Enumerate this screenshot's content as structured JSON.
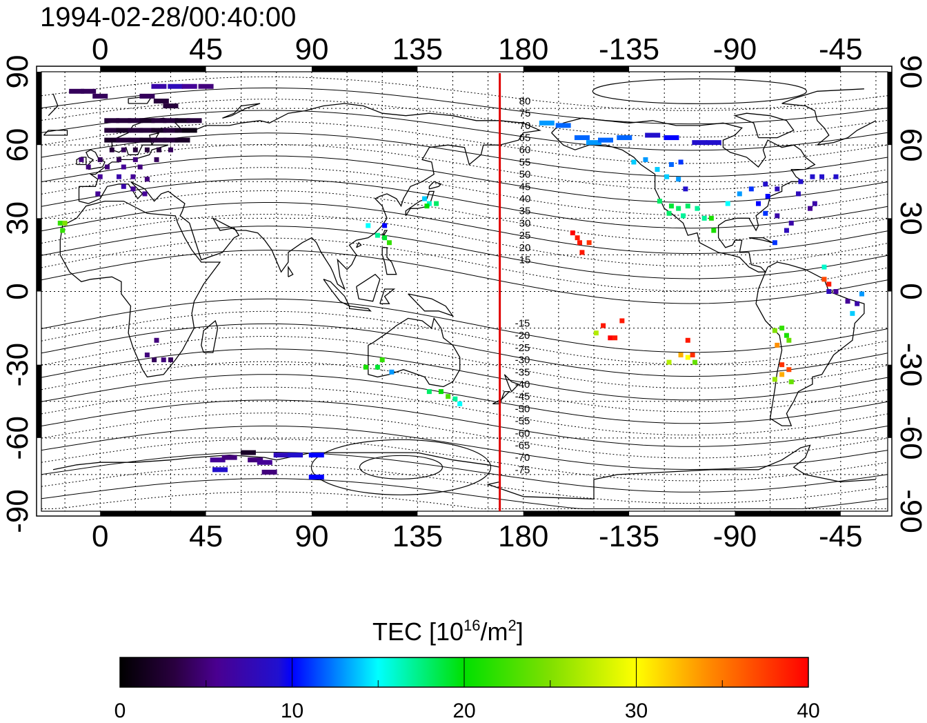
{
  "title": "1994-02-28/00:40:00",
  "map": {
    "projection": "equirectangular",
    "lon_center": 180,
    "top_ticks": [
      "0",
      "45",
      "90",
      "135",
      "180",
      "-135",
      "-90",
      "-45"
    ],
    "bottom_ticks": [
      "0",
      "45",
      "90",
      "135",
      "180",
      "-135",
      "-90",
      "-45"
    ],
    "left_ticks": [
      "90",
      "60",
      "30",
      "0",
      "-30",
      "-60",
      "-90"
    ],
    "right_ticks": [
      "90",
      "60",
      "30",
      "0",
      "-30",
      "-60",
      "-90"
    ],
    "meridian_marker_lon": 170,
    "contour_labels_north": [
      "80",
      "75",
      "70",
      "65",
      "60",
      "55",
      "50",
      "45",
      "40",
      "35",
      "30",
      "25",
      "20",
      "15"
    ],
    "contour_labels_south": [
      "-15",
      "-20",
      "-25",
      "-30",
      "-35",
      "-40",
      "-45",
      "-50",
      "-55",
      "-60",
      "-65",
      "-70",
      "-75"
    ]
  },
  "colorbar": {
    "label_main": "TEC  [10",
    "label_sup": "16",
    "label_mid": "/m",
    "label_sup2": "2",
    "label_end": "]",
    "ticks": [
      "0",
      "10",
      "20",
      "30",
      "40"
    ],
    "min": 0,
    "max": 40
  },
  "tec_points": [
    {
      "lon": -10,
      "lat": 82,
      "tec": 4
    },
    {
      "lon": -5,
      "lat": 82,
      "tec": 4
    },
    {
      "lon": 0,
      "lat": 80,
      "tec": 4
    },
    {
      "lon": 25,
      "lat": 84,
      "tec": 7
    },
    {
      "lon": 32,
      "lat": 84,
      "tec": 8
    },
    {
      "lon": 38,
      "lat": 84,
      "tec": 6
    },
    {
      "lon": 45,
      "lat": 84,
      "tec": 5
    },
    {
      "lon": 20,
      "lat": 80,
      "tec": 4
    },
    {
      "lon": 26,
      "lat": 78,
      "tec": 3
    },
    {
      "lon": 30,
      "lat": 76,
      "tec": 3
    },
    {
      "lon": 5,
      "lat": 70,
      "tec": 3
    },
    {
      "lon": 10,
      "lat": 70,
      "tec": 3
    },
    {
      "lon": 15,
      "lat": 70,
      "tec": 3
    },
    {
      "lon": 20,
      "lat": 70,
      "tec": 2
    },
    {
      "lon": 25,
      "lat": 70,
      "tec": 3
    },
    {
      "lon": 30,
      "lat": 70,
      "tec": 3
    },
    {
      "lon": 35,
      "lat": 70,
      "tec": 2
    },
    {
      "lon": 40,
      "lat": 70,
      "tec": 3
    },
    {
      "lon": 5,
      "lat": 66,
      "tec": 3
    },
    {
      "lon": 10,
      "lat": 66,
      "tec": 2
    },
    {
      "lon": 15,
      "lat": 66,
      "tec": 3
    },
    {
      "lon": 20,
      "lat": 66,
      "tec": 3
    },
    {
      "lon": 25,
      "lat": 66,
      "tec": 2
    },
    {
      "lon": 30,
      "lat": 66,
      "tec": 3
    },
    {
      "lon": 35,
      "lat": 66,
      "tec": 2
    },
    {
      "lon": 38,
      "lat": 66,
      "tec": 1
    },
    {
      "lon": 5,
      "lat": 62,
      "tec": 2
    },
    {
      "lon": 10,
      "lat": 62,
      "tec": 3
    },
    {
      "lon": 15,
      "lat": 62,
      "tec": 3
    },
    {
      "lon": 20,
      "lat": 62,
      "tec": 2
    },
    {
      "lon": 25,
      "lat": 62,
      "tec": 3
    },
    {
      "lon": 30,
      "lat": 62,
      "tec": 3
    },
    {
      "lon": 35,
      "lat": 62,
      "tec": 2
    },
    {
      "lon": 5,
      "lat": 58,
      "tec": 3
    },
    {
      "lon": 10,
      "lat": 58,
      "tec": 4
    },
    {
      "lon": 15,
      "lat": 58,
      "tec": 3
    },
    {
      "lon": 20,
      "lat": 58,
      "tec": 3
    },
    {
      "lon": 25,
      "lat": 58,
      "tec": 3
    },
    {
      "lon": 30,
      "lat": 58,
      "tec": 4
    },
    {
      "lon": -8,
      "lat": 54,
      "tec": 5
    },
    {
      "lon": 0,
      "lat": 54,
      "tec": 4
    },
    {
      "lon": 8,
      "lat": 54,
      "tec": 4
    },
    {
      "lon": 15,
      "lat": 54,
      "tec": 5
    },
    {
      "lon": 24,
      "lat": 54,
      "tec": 4
    },
    {
      "lon": -5,
      "lat": 51,
      "tec": 5
    },
    {
      "lon": 3,
      "lat": 51,
      "tec": 5
    },
    {
      "lon": 10,
      "lat": 51,
      "tec": 6
    },
    {
      "lon": 17,
      "lat": 51,
      "tec": 5
    },
    {
      "lon": 0,
      "lat": 47,
      "tec": 6
    },
    {
      "lon": 8,
      "lat": 47,
      "tec": 7
    },
    {
      "lon": 14,
      "lat": 47,
      "tec": 6
    },
    {
      "lon": 20,
      "lat": 46,
      "tec": 5
    },
    {
      "lon": 10,
      "lat": 43,
      "tec": 7
    },
    {
      "lon": 14,
      "lat": 42,
      "tec": 6
    },
    {
      "lon": -1,
      "lat": 40,
      "tec": 6
    },
    {
      "lon": 19,
      "lat": 40,
      "tec": 6
    },
    {
      "lon": -17,
      "lat": 28,
      "tec": 22
    },
    {
      "lon": -15,
      "lat": 28,
      "tec": 25
    },
    {
      "lon": -16,
      "lat": 25,
      "tec": 22
    },
    {
      "lon": 24,
      "lat": -20,
      "tec": 5
    },
    {
      "lon": 20,
      "lat": -26,
      "tec": 5
    },
    {
      "lon": 23,
      "lat": -28,
      "tec": 4
    },
    {
      "lon": 27,
      "lat": -28,
      "tec": 5
    },
    {
      "lon": 30,
      "lat": -28,
      "tec": 4
    },
    {
      "lon": 138,
      "lat": 38,
      "tec": 14
    },
    {
      "lon": 140,
      "lat": 36,
      "tec": 16
    },
    {
      "lon": 143,
      "lat": 36,
      "tec": 18
    },
    {
      "lon": 139,
      "lat": 35,
      "tec": 20
    },
    {
      "lon": 114,
      "lat": 27,
      "tec": 15
    },
    {
      "lon": 121,
      "lat": 27,
      "tec": 10
    },
    {
      "lon": 118,
      "lat": 23,
      "tec": 17
    },
    {
      "lon": 121,
      "lat": 22,
      "tec": 19
    },
    {
      "lon": 123,
      "lat": 20,
      "tec": 22
    },
    {
      "lon": 113,
      "lat": -31,
      "tec": 21
    },
    {
      "lon": 118,
      "lat": -31,
      "tec": 19
    },
    {
      "lon": 120,
      "lat": -28,
      "tec": 22
    },
    {
      "lon": 124,
      "lat": -33,
      "tec": 13
    },
    {
      "lon": 140,
      "lat": -41,
      "tec": 18
    },
    {
      "lon": 145,
      "lat": -41,
      "tec": 20
    },
    {
      "lon": 148,
      "lat": -43,
      "tec": 23
    },
    {
      "lon": 151,
      "lat": -44,
      "tec": 17
    },
    {
      "lon": 153,
      "lat": -46,
      "tec": 15
    },
    {
      "lon": 50,
      "lat": -69,
      "tec": 6
    },
    {
      "lon": 55,
      "lat": -68,
      "tec": 5
    },
    {
      "lon": 63,
      "lat": -66,
      "tec": 2
    },
    {
      "lon": 66,
      "lat": -69,
      "tec": 5
    },
    {
      "lon": 70,
      "lat": -70,
      "tec": 6
    },
    {
      "lon": 72,
      "lat": -74,
      "tec": 5
    },
    {
      "lon": 77,
      "lat": -67,
      "tec": 8
    },
    {
      "lon": 83,
      "lat": -67,
      "tec": 9
    },
    {
      "lon": 92,
      "lat": -67,
      "tec": 10
    },
    {
      "lon": 51,
      "lat": -73,
      "tec": 9
    },
    {
      "lon": 92,
      "lat": -76,
      "tec": 10
    },
    {
      "lon": -157,
      "lat": 22,
      "tec": 39
    },
    {
      "lon": -159,
      "lat": 24,
      "tec": 40
    },
    {
      "lon": -156,
      "lat": 20,
      "tec": 39
    },
    {
      "lon": -152,
      "lat": 20,
      "tec": 38
    },
    {
      "lon": -155,
      "lat": 16,
      "tec": 39
    },
    {
      "lon": -149,
      "lat": -17,
      "tec": 27
    },
    {
      "lon": -146,
      "lat": -14,
      "tec": 39
    },
    {
      "lon": -143,
      "lat": -19,
      "tec": 40
    },
    {
      "lon": -141,
      "lat": -19,
      "tec": 39
    },
    {
      "lon": -138,
      "lat": -12,
      "tec": 39
    },
    {
      "lon": -118,
      "lat": -29,
      "tec": 27
    },
    {
      "lon": -113,
      "lat": -26,
      "tec": 33
    },
    {
      "lon": -110,
      "lat": -27,
      "tec": 30
    },
    {
      "lon": -108,
      "lat": -26,
      "tec": 38
    },
    {
      "lon": -110,
      "lat": -20,
      "tec": 39
    },
    {
      "lon": -107,
      "lat": -29,
      "tec": 24
    },
    {
      "lon": -170,
      "lat": 69,
      "tec": 13
    },
    {
      "lon": -163,
      "lat": 68,
      "tec": 12
    },
    {
      "lon": -155,
      "lat": 63,
      "tec": 12
    },
    {
      "lon": -150,
      "lat": 61,
      "tec": 13
    },
    {
      "lon": -145,
      "lat": 62,
      "tec": 12
    },
    {
      "lon": -137,
      "lat": 63,
      "tec": 12
    },
    {
      "lon": -125,
      "lat": 64,
      "tec": 9
    },
    {
      "lon": -117,
      "lat": 63,
      "tec": 10
    },
    {
      "lon": -105,
      "lat": 61,
      "tec": 9
    },
    {
      "lon": -99,
      "lat": 61,
      "tec": 9
    },
    {
      "lon": -133,
      "lat": 53,
      "tec": 14
    },
    {
      "lon": -128,
      "lat": 54,
      "tec": 13
    },
    {
      "lon": -123,
      "lat": 50,
      "tec": 14
    },
    {
      "lon": -117,
      "lat": 52,
      "tec": 12
    },
    {
      "lon": -113,
      "lat": 53,
      "tec": 11
    },
    {
      "lon": -119,
      "lat": 47,
      "tec": 14
    },
    {
      "lon": -114,
      "lat": 46,
      "tec": 13
    },
    {
      "lon": -111,
      "lat": 42,
      "tec": 9
    },
    {
      "lon": -122,
      "lat": 37,
      "tec": 18
    },
    {
      "lon": -117,
      "lat": 35,
      "tec": 19
    },
    {
      "lon": -114,
      "lat": 34,
      "tec": 18
    },
    {
      "lon": -110,
      "lat": 35,
      "tec": 18
    },
    {
      "lon": -106,
      "lat": 34,
      "tec": 17
    },
    {
      "lon": -118,
      "lat": 32,
      "tec": 18
    },
    {
      "lon": -112,
      "lat": 31,
      "tec": 17
    },
    {
      "lon": -103,
      "lat": 30,
      "tec": 17
    },
    {
      "lon": -100,
      "lat": 30,
      "tec": 21
    },
    {
      "lon": -99,
      "lat": 25,
      "tec": 21
    },
    {
      "lon": -93,
      "lat": 36,
      "tec": 15
    },
    {
      "lon": -88,
      "lat": 40,
      "tec": 13
    },
    {
      "lon": -83,
      "lat": 42,
      "tec": 11
    },
    {
      "lon": -77,
      "lat": 44,
      "tec": 9
    },
    {
      "lon": -72,
      "lat": 42,
      "tec": 8
    },
    {
      "lon": -76,
      "lat": 39,
      "tec": 10
    },
    {
      "lon": -80,
      "lat": 36,
      "tec": 10
    },
    {
      "lon": -77,
      "lat": 32,
      "tec": 11
    },
    {
      "lon": -72,
      "lat": 31,
      "tec": 7
    },
    {
      "lon": -66,
      "lat": 28,
      "tec": 7
    },
    {
      "lon": -68,
      "lat": 25,
      "tec": 8
    },
    {
      "lon": -73,
      "lat": 20,
      "tec": 11
    },
    {
      "lon": -62,
      "lat": 45,
      "tec": 9
    },
    {
      "lon": -57,
      "lat": 47,
      "tec": 9
    },
    {
      "lon": -53,
      "lat": 47,
      "tec": 9
    },
    {
      "lon": -47,
      "lat": 47,
      "tec": 9
    },
    {
      "lon": -63,
      "lat": 40,
      "tec": 8
    },
    {
      "lon": -58,
      "lat": 34,
      "tec": 6
    },
    {
      "lon": -56,
      "lat": 36,
      "tec": 7
    },
    {
      "lon": -52,
      "lat": 10,
      "tec": 16
    },
    {
      "lon": -52,
      "lat": 5,
      "tec": 37
    },
    {
      "lon": -50,
      "lat": 3,
      "tec": 39
    },
    {
      "lon": -50,
      "lat": 0,
      "tec": 8
    },
    {
      "lon": -47,
      "lat": 0,
      "tec": 6
    },
    {
      "lon": -42,
      "lat": -4,
      "tec": 6
    },
    {
      "lon": -38,
      "lat": -5,
      "tec": 7
    },
    {
      "lon": -36,
      "lat": -1,
      "tec": 13
    },
    {
      "lon": -40,
      "lat": -9,
      "tec": 14
    },
    {
      "lon": -73,
      "lat": -16,
      "tec": 25
    },
    {
      "lon": -70,
      "lat": -15,
      "tec": 22
    },
    {
      "lon": -68,
      "lat": -18,
      "tec": 21
    },
    {
      "lon": -72,
      "lat": -22,
      "tec": 34
    },
    {
      "lon": -67,
      "lat": -20,
      "tec": 24
    },
    {
      "lon": -70,
      "lat": -30,
      "tec": 38
    },
    {
      "lon": -70,
      "lat": -34,
      "tec": 33
    },
    {
      "lon": -73,
      "lat": -36,
      "tec": 26
    },
    {
      "lon": -67,
      "lat": -32,
      "tec": 37
    },
    {
      "lon": -66,
      "lat": -37,
      "tec": 24
    }
  ]
}
